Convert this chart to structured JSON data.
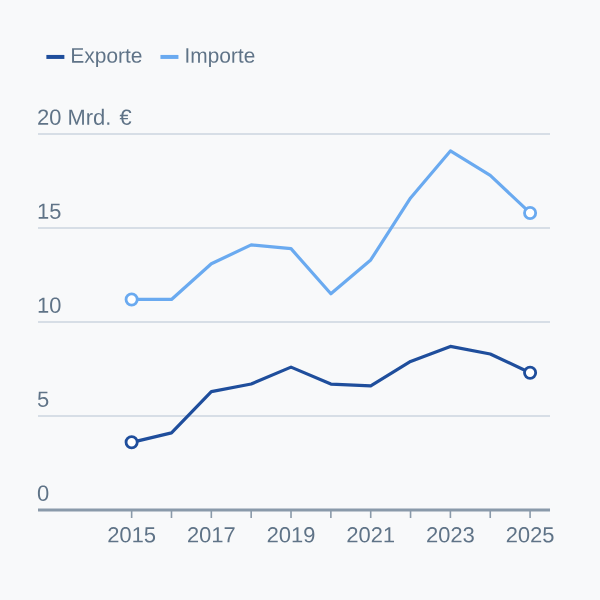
{
  "chart_data": {
    "type": "line",
    "x": [
      2015,
      2016,
      2017,
      2018,
      2019,
      2020,
      2021,
      2022,
      2023,
      2024,
      2025
    ],
    "series": [
      {
        "name": "Exporte",
        "color": "#1f4e9c",
        "marker": "none",
        "values": [
          3.6,
          4.1,
          6.3,
          6.7,
          7.6,
          6.7,
          6.6,
          7.9,
          8.7,
          8.3,
          7.3
        ]
      },
      {
        "name": "Importe",
        "color": "#6aaaf0",
        "marker": "none",
        "values": [
          11.2,
          11.2,
          13.1,
          14.1,
          13.9,
          11.5,
          13.3,
          16.6,
          19.1,
          17.8,
          15.8
        ]
      },
      {
        "type": "scatter",
        "color": "#1f4e9c",
        "values": [
          3.6,
          null,
          null,
          null,
          null,
          null,
          null,
          null,
          null,
          null,
          7.3
        ]
      },
      {
        "type": "scatter",
        "color": "#6aaaf0",
        "values": [
          11.2,
          null,
          null,
          null,
          null,
          null,
          null,
          null,
          null,
          null,
          15.8
        ]
      }
    ],
    "xlim": [
      2012.65,
      2025.5
    ],
    "xticks": [
      2015,
      {
        "value": 2016,
        "label": null
      },
      2017,
      {
        "value": 2018,
        "label": null
      },
      2019,
      {
        "value": 2020,
        "label": null
      },
      2021,
      {
        "value": 2022,
        "label": null
      },
      2023,
      {
        "value": 2024,
        "label": null
      },
      2025
    ],
    "ylim": [
      0,
      20
    ],
    "yticks": [
      0,
      5,
      10,
      15,
      {
        "value": 20,
        "label": "20 Mrd. €"
      }
    ],
    "grid": "y",
    "legend": "top left",
    "marker": "circle"
  }
}
